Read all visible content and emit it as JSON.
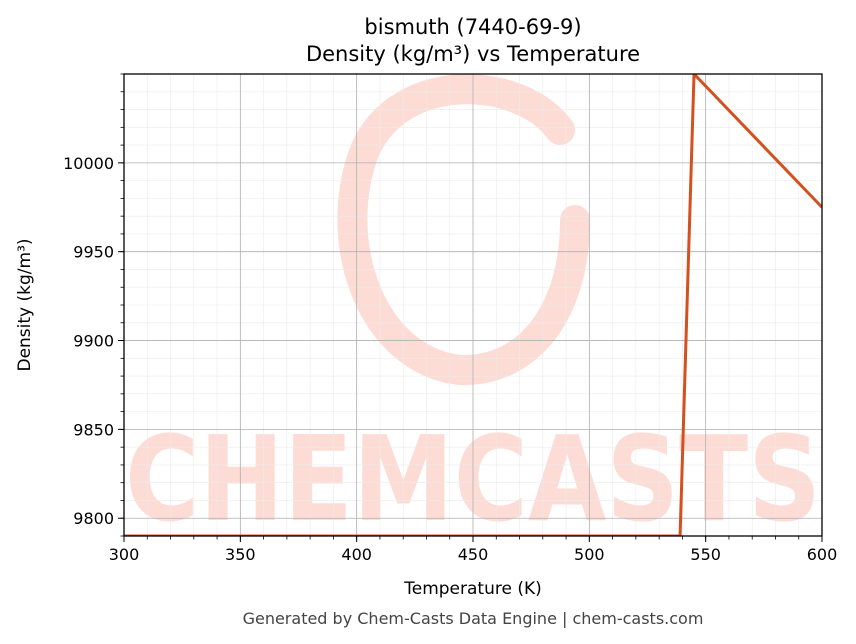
{
  "chart_data": {
    "type": "line",
    "title": "bismuth (7440-69-9)",
    "subtitle": "Density (kg/m³) vs Temperature",
    "xlabel": "Temperature (K)",
    "ylabel": "Density (kg/m³)",
    "xlim": [
      300,
      600
    ],
    "ylim": [
      9790,
      10050
    ],
    "xticks": [
      300,
      350,
      400,
      450,
      500,
      550,
      600
    ],
    "yticks": [
      9800,
      9850,
      9900,
      9950,
      10000
    ],
    "grid": true,
    "legend": "none",
    "series": [
      {
        "color": "#d4501f",
        "x": [
          300,
          539,
          545,
          600
        ],
        "y": [
          9790,
          9790,
          10050,
          9975
        ]
      }
    ]
  },
  "watermark": {
    "text": "CHEMCASTS",
    "color": "#fddcd5"
  },
  "footer": "Generated by Chem-Casts Data Engine | chem-casts.com"
}
